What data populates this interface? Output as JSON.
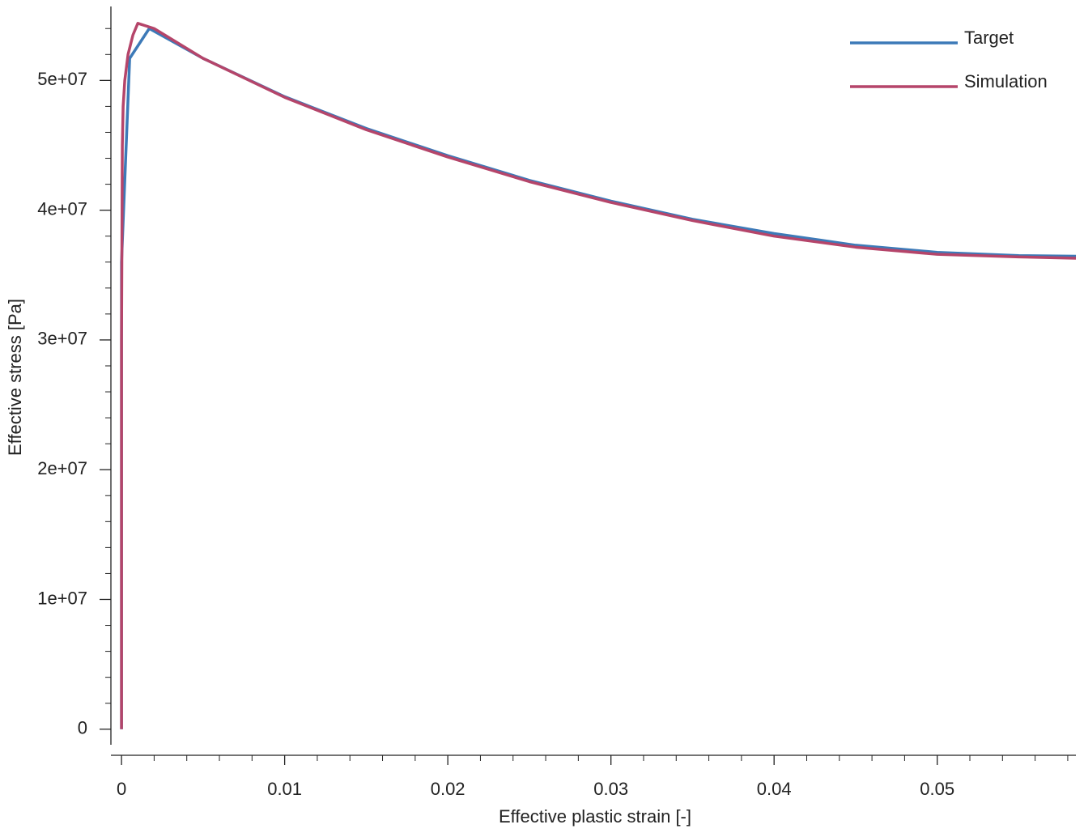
{
  "chart_data": {
    "type": "line",
    "x_label": "Effective plastic strain [-]",
    "y_label": "Effective stress [Pa]",
    "xlim": [
      -0.00065,
      0.0585
    ],
    "ylim": [
      -1200000,
      55700000
    ],
    "xticks": [
      0,
      0.01,
      0.02,
      0.03,
      0.04,
      0.05
    ],
    "xminorticks": [
      0.002,
      0.004,
      0.006,
      0.008,
      0.012,
      0.014,
      0.016,
      0.018,
      0.022,
      0.024,
      0.026,
      0.028,
      0.032,
      0.034,
      0.036,
      0.038,
      0.042,
      0.044,
      0.046,
      0.048,
      0.052,
      0.054,
      0.056,
      0.058
    ],
    "yticks": [
      0,
      {
        "value": 10000000,
        "label": "1e+07"
      },
      {
        "value": 20000000,
        "label": "2e+07"
      },
      {
        "value": 30000000,
        "label": "3e+07"
      },
      {
        "value": 40000000,
        "label": "4e+07"
      },
      {
        "value": 50000000,
        "label": "5e+07"
      }
    ],
    "yminorticks": [
      2000000,
      4000000,
      6000000,
      8000000,
      12000000,
      14000000,
      16000000,
      18000000,
      22000000,
      24000000,
      26000000,
      28000000,
      32000000,
      34000000,
      36000000,
      38000000,
      42000000,
      44000000,
      46000000,
      48000000,
      52000000,
      54000000
    ],
    "legend": "upper right",
    "series": [
      {
        "name": "Target",
        "color": "#3d7ab8",
        "x": [
          0,
          0,
          0.0005,
          0.0017,
          0.005,
          0.01,
          0.015,
          0.02,
          0.025,
          0.03,
          0.035,
          0.04,
          0.045,
          0.05,
          0.055,
          0.0585
        ],
        "values": [
          0,
          36000000,
          51700000,
          54000000,
          51700000,
          48750000,
          46300000,
          44200000,
          42300000,
          40700000,
          39300000,
          38200000,
          37300000,
          36750000,
          36500000,
          36450000
        ]
      },
      {
        "name": "Simulation",
        "color": "#b5456a",
        "x": [
          0,
          0,
          5e-05,
          0.0001,
          0.0002,
          0.0004,
          0.0007,
          0.001,
          0.002,
          0.005,
          0.01,
          0.015,
          0.02,
          0.025,
          0.03,
          0.035,
          0.04,
          0.045,
          0.05,
          0.055,
          0.0585
        ],
        "values": [
          0,
          30000000,
          45000000,
          48000000,
          50000000,
          52000000,
          53500000,
          54400000,
          54000000,
          51700000,
          48700000,
          46200000,
          44100000,
          42200000,
          40600000,
          39200000,
          38000000,
          37150000,
          36600000,
          36400000,
          36300000
        ]
      }
    ]
  }
}
